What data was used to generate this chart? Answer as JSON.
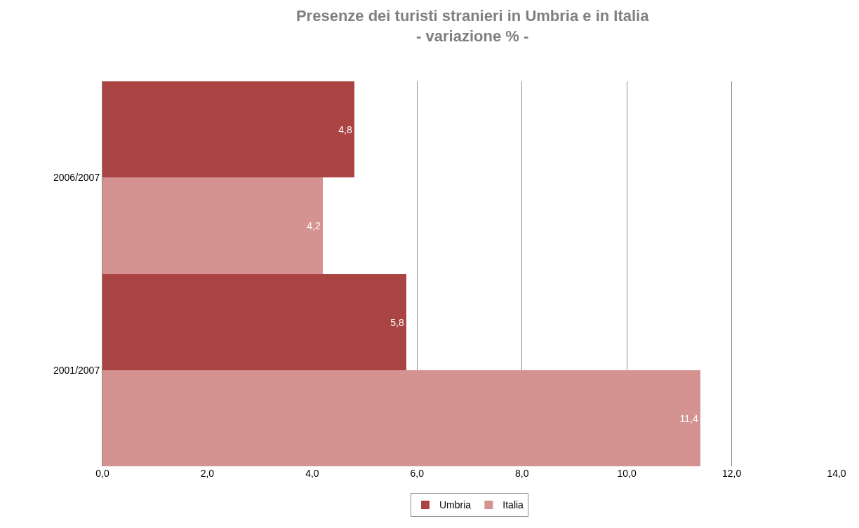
{
  "chart_data": {
    "type": "bar",
    "orientation": "horizontal",
    "title": "Presenze dei turisti stranieri in Umbria e in Italia\n- variazione % -",
    "categories": [
      "2006/2007",
      "2001/2007"
    ],
    "series": [
      {
        "name": "Umbria",
        "color": "#a94442",
        "values": [
          4.8,
          5.8
        ],
        "value_labels": [
          "4,8",
          "5,8"
        ]
      },
      {
        "name": "Italia",
        "color": "#d49290",
        "values": [
          4.2,
          11.4
        ],
        "value_labels": [
          "4,2",
          "11,4"
        ]
      }
    ],
    "xlim": [
      0,
      14
    ],
    "xticks": [
      {
        "value": 0,
        "label": "0,0"
      },
      {
        "value": 2,
        "label": "2,0"
      },
      {
        "value": 4,
        "label": "4,0"
      },
      {
        "value": 6,
        "label": "6,0"
      },
      {
        "value": 8,
        "label": "8,0"
      },
      {
        "value": 10,
        "label": "10,0"
      },
      {
        "value": 12,
        "label": "12,0"
      },
      {
        "value": 14,
        "label": "14,0"
      }
    ],
    "grid": "x",
    "legend": "bottom"
  }
}
